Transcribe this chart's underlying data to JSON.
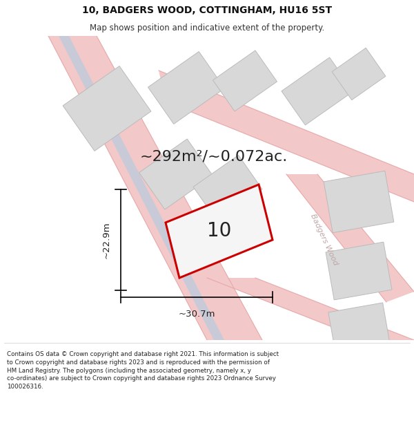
{
  "title": "10, BADGERS WOOD, COTTINGHAM, HU16 5ST",
  "subtitle": "Map shows position and indicative extent of the property.",
  "area_text": "~292m²/~0.072ac.",
  "label_10": "10",
  "dim_width": "~30.7m",
  "dim_height": "~22.9m",
  "street_label": "Badgers Wood",
  "footer": "Contains OS data © Crown copyright and database right 2021. This information is subject to Crown copyright and database rights 2023 and is reproduced with the permission of HM Land Registry. The polygons (including the associated geometry, namely x, y co-ordinates) are subject to Crown copyright and database rights 2023 Ordnance Survey 100026316.",
  "bg_color": "#ffffff",
  "map_bg": "#f7f7f7",
  "road_color_pink": "#f2c8c8",
  "road_edge_pink": "#e8a8a8",
  "building_color": "#d8d8d8",
  "building_edge": "#bbbbbb",
  "highlight_color": "#cc0000",
  "highlight_fill": "#f5f5f5",
  "narrow_road_color": "#b8cce0",
  "road_line_color": "#e0aaaa",
  "title_fontsize": 10,
  "subtitle_fontsize": 8.5,
  "area_fontsize": 16,
  "label_fontsize": 20,
  "dim_fontsize": 9.5,
  "street_fontsize": 8,
  "footer_fontsize": 6.3
}
